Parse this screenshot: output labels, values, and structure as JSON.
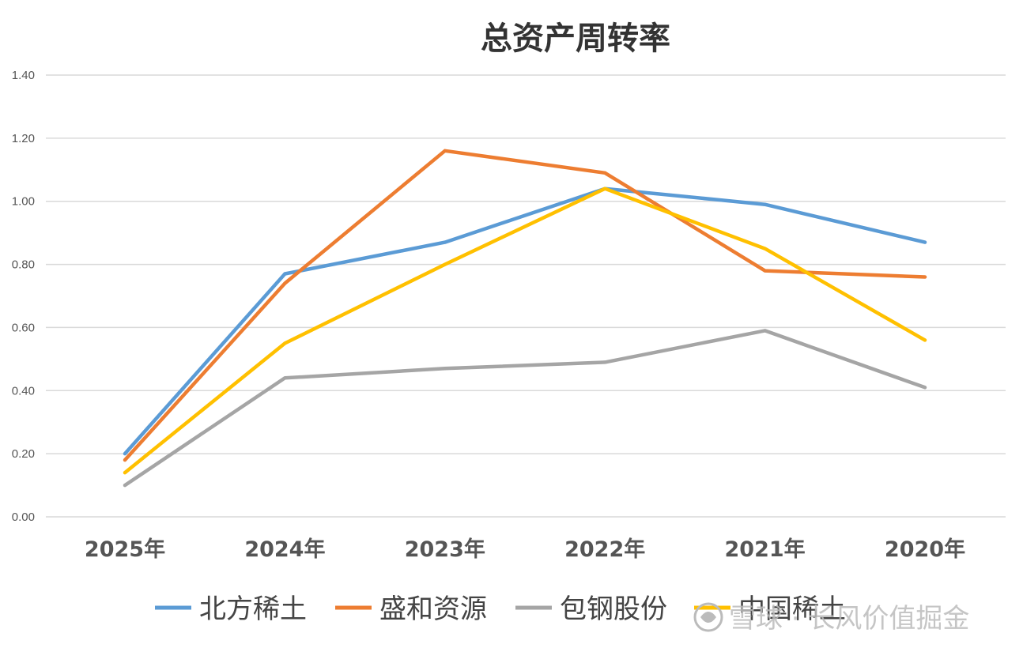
{
  "chart_data": {
    "type": "line",
    "title": "总资产周转率",
    "categories": [
      "2025年",
      "2024年",
      "2023年",
      "2022年",
      "2021年",
      "2020年"
    ],
    "ylim": [
      0,
      1.4
    ],
    "yticks": [
      "0.00",
      "0.20",
      "0.40",
      "0.60",
      "0.80",
      "1.00",
      "1.20",
      "1.40"
    ],
    "grid": true,
    "legend_position": "bottom",
    "series": [
      {
        "name": "北方稀土",
        "color": "#5b9bd5",
        "values": [
          0.2,
          0.77,
          0.87,
          1.04,
          0.99,
          0.87
        ]
      },
      {
        "name": "盛和资源",
        "color": "#ed7d31",
        "values": [
          0.18,
          0.74,
          1.16,
          1.09,
          0.78,
          0.76
        ]
      },
      {
        "name": "包钢股份",
        "color": "#a5a5a5",
        "values": [
          0.1,
          0.44,
          0.47,
          0.49,
          0.59,
          0.41
        ]
      },
      {
        "name": "中国稀土",
        "color": "#ffc000",
        "values": [
          0.14,
          0.55,
          0.8,
          1.04,
          0.85,
          0.56
        ]
      }
    ]
  },
  "watermark": {
    "text": "雪球 · 长风价值掘金",
    "icon": "snowball-logo-icon"
  }
}
